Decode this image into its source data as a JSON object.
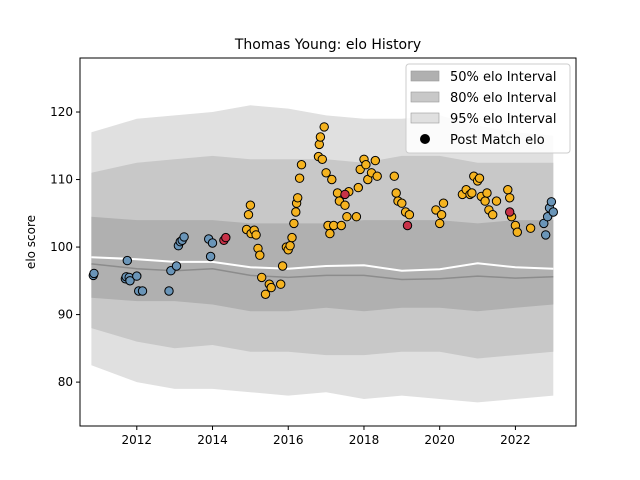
{
  "chart_data": {
    "type": "scatter",
    "title": "Thomas Young: elo History",
    "xlabel": "",
    "ylabel": "elo score",
    "xlim": [
      2010.5,
      2023.6
    ],
    "ylim": [
      73.5,
      128.0
    ],
    "x_ticks": [
      2012,
      2014,
      2016,
      2018,
      2020,
      2022
    ],
    "y_ticks": [
      80,
      90,
      100,
      110,
      120
    ],
    "legend": {
      "placement": "top-right",
      "entries": [
        {
          "label": "50% elo Interval",
          "kind": "band",
          "color": "#b0b0b0"
        },
        {
          "label": "80% elo Interval",
          "kind": "band",
          "color": "#c8c8c8"
        },
        {
          "label": "95% elo Interval",
          "kind": "band",
          "color": "#e0e0e0"
        },
        {
          "label": "Post Match elo",
          "kind": "marker",
          "color": "#000000"
        }
      ]
    },
    "colors": {
      "high_elo": "#f5b31f",
      "low_elo": "#6a95b8",
      "loss": "#c83248",
      "mean_line": "#ffffff",
      "median_line": "#8c8c8c"
    },
    "bands": {
      "x": [
        2010.8,
        2012,
        2013,
        2014,
        2015,
        2016,
        2017,
        2018,
        2019,
        2020,
        2021,
        2022,
        2023
      ],
      "p95_low": [
        82.5,
        80.0,
        79.0,
        79.0,
        78.5,
        78.0,
        78.5,
        77.5,
        78.0,
        77.5,
        77.0,
        77.5,
        78.0
      ],
      "p95_high": [
        117.0,
        119.0,
        119.5,
        120.0,
        121.0,
        120.5,
        119.5,
        119.0,
        119.0,
        119.5,
        118.0,
        117.0,
        116.5
      ],
      "p80_low": [
        88.0,
        86.0,
        85.0,
        85.5,
        84.5,
        84.5,
        84.0,
        84.0,
        84.5,
        84.5,
        83.5,
        84.0,
        84.5
      ],
      "p80_high": [
        111.0,
        112.5,
        113.0,
        113.5,
        113.0,
        113.0,
        113.0,
        112.5,
        113.5,
        113.5,
        112.5,
        112.5,
        112.5
      ],
      "p50_low": [
        92.5,
        92.0,
        92.0,
        91.5,
        90.5,
        90.5,
        91.0,
        90.5,
        91.0,
        91.0,
        90.5,
        91.0,
        91.5
      ],
      "p50_high": [
        104.5,
        104.0,
        104.0,
        104.0,
        103.5,
        103.5,
        103.5,
        104.0,
        104.0,
        104.0,
        103.5,
        104.0,
        104.0
      ],
      "mean": [
        98.5,
        98.2,
        97.8,
        97.8,
        97.0,
        96.8,
        97.2,
        97.3,
        96.5,
        96.7,
        97.6,
        97.0,
        96.8
      ],
      "median": [
        97.5,
        96.8,
        96.5,
        96.8,
        95.8,
        95.5,
        95.8,
        95.8,
        95.2,
        95.3,
        95.7,
        95.4,
        95.6
      ]
    },
    "series": [
      {
        "color_role": "low_elo",
        "x": [
          2010.85,
          2010.87,
          2011.7,
          2011.72,
          2011.75,
          2011.8,
          2011.82,
          2012.0,
          2012.05,
          2012.15,
          2012.85,
          2012.9,
          2013.05,
          2013.1,
          2013.15,
          2013.2,
          2013.25,
          2013.9,
          2013.95,
          2014.0,
          2022.75,
          2022.8,
          2022.85,
          2022.9,
          2022.95,
          2023.0
        ],
        "y": [
          95.8,
          96.1,
          95.3,
          95.6,
          98.0,
          95.5,
          95.0,
          95.7,
          93.5,
          93.5,
          93.5,
          96.5,
          97.2,
          100.2,
          100.8,
          101.0,
          101.5,
          101.2,
          98.6,
          100.6,
          103.5,
          101.8,
          104.5,
          105.8,
          106.7,
          105.2
        ]
      },
      {
        "color_role": "high_elo",
        "x": [
          2014.9,
          2014.95,
          2015.0,
          2015.02,
          2015.1,
          2015.15,
          2015.2,
          2015.25,
          2015.3,
          2015.4,
          2015.5,
          2015.55,
          2015.8,
          2015.85,
          2015.95,
          2016.0,
          2016.05,
          2016.1,
          2016.15,
          2016.2,
          2016.22,
          2016.25,
          2016.3,
          2016.35,
          2016.8,
          2016.82,
          2016.85,
          2016.9,
          2016.95,
          2017.0,
          2017.05,
          2017.1,
          2017.15,
          2017.2,
          2017.3,
          2017.35,
          2017.4,
          2017.5,
          2017.55,
          2017.6,
          2017.8,
          2017.85,
          2017.9,
          2018.0,
          2018.05,
          2018.1,
          2018.2,
          2018.3,
          2018.35,
          2018.8,
          2018.85,
          2018.9,
          2019.0,
          2019.1,
          2019.2,
          2019.9,
          2020.0,
          2020.05,
          2020.1,
          2020.6,
          2020.7,
          2020.8,
          2020.85,
          2020.9,
          2021.0,
          2021.05,
          2021.1,
          2021.2,
          2021.25,
          2021.3,
          2021.4,
          2021.5,
          2021.8,
          2021.85,
          2021.9,
          2022.0,
          2022.05,
          2022.4
        ],
        "y": [
          102.6,
          104.8,
          106.2,
          102.0,
          102.5,
          101.8,
          99.8,
          98.8,
          95.5,
          93.0,
          94.5,
          94.0,
          94.5,
          97.2,
          100.0,
          99.6,
          100.2,
          101.4,
          103.5,
          105.2,
          106.5,
          107.3,
          110.2,
          112.2,
          113.4,
          115.2,
          116.3,
          113.0,
          117.8,
          111.0,
          103.2,
          102.0,
          110.0,
          103.2,
          108.0,
          106.8,
          103.2,
          106.2,
          104.5,
          108.2,
          104.5,
          108.8,
          111.5,
          113.0,
          112.2,
          110.0,
          111.0,
          112.8,
          110.5,
          110.5,
          108.0,
          106.8,
          106.5,
          105.2,
          104.8,
          105.5,
          103.5,
          104.8,
          106.5,
          107.8,
          108.5,
          107.8,
          108.0,
          110.5,
          109.8,
          110.2,
          107.5,
          106.8,
          108.0,
          105.5,
          104.8,
          106.8,
          108.5,
          107.3,
          104.5,
          103.2,
          102.2,
          102.8
        ]
      },
      {
        "color_role": "loss",
        "x": [
          2014.3,
          2014.35,
          2017.5,
          2019.15,
          2021.85
        ],
        "y": [
          101.0,
          101.4,
          107.8,
          103.2,
          105.2
        ]
      }
    ]
  }
}
